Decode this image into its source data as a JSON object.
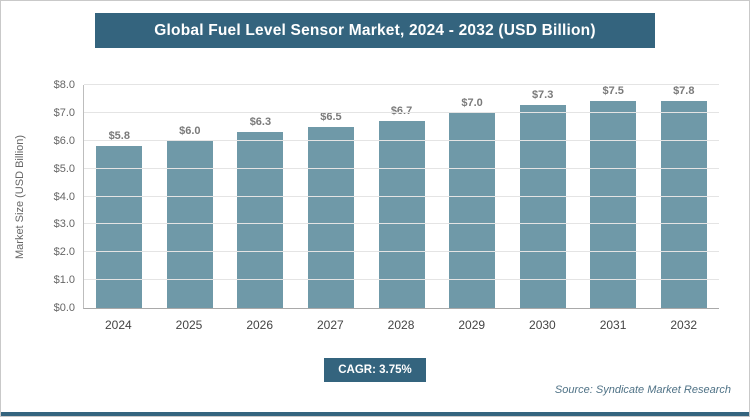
{
  "chart_data": {
    "type": "bar",
    "title": "Global Fuel Level Sensor Market, 2024 - 2032 (USD Billion)",
    "categories": [
      "2024",
      "2025",
      "2026",
      "2027",
      "2028",
      "2029",
      "2030",
      "2031",
      "2032"
    ],
    "values": [
      5.8,
      6.0,
      6.3,
      6.5,
      6.7,
      7.0,
      7.3,
      7.5,
      7.8
    ],
    "value_labels": [
      "$5.8",
      "$6.0",
      "$6.3",
      "$6.5",
      "$6.7",
      "$7.0",
      "$7.3",
      "$7.5",
      "$7.8"
    ],
    "xlabel": "",
    "ylabel": "Market Size (USD Billion)",
    "ylim": [
      0,
      8
    ],
    "ytick_step": 1,
    "ytick_labels": [
      "$0.0",
      "$1.0",
      "$2.0",
      "$3.0",
      "$4.0",
      "$5.0",
      "$6.0",
      "$7.0",
      "$8.0"
    ],
    "grid": true,
    "legend": "none",
    "bar_color": "#6f99a8"
  },
  "footer": {
    "cagr_label": "CAGR: 3.75%",
    "source": "Source: Syndicate Market Research"
  },
  "colors": {
    "accent": "#34647e",
    "bar": "#6f99a8",
    "grid": "#e4e4e4"
  }
}
